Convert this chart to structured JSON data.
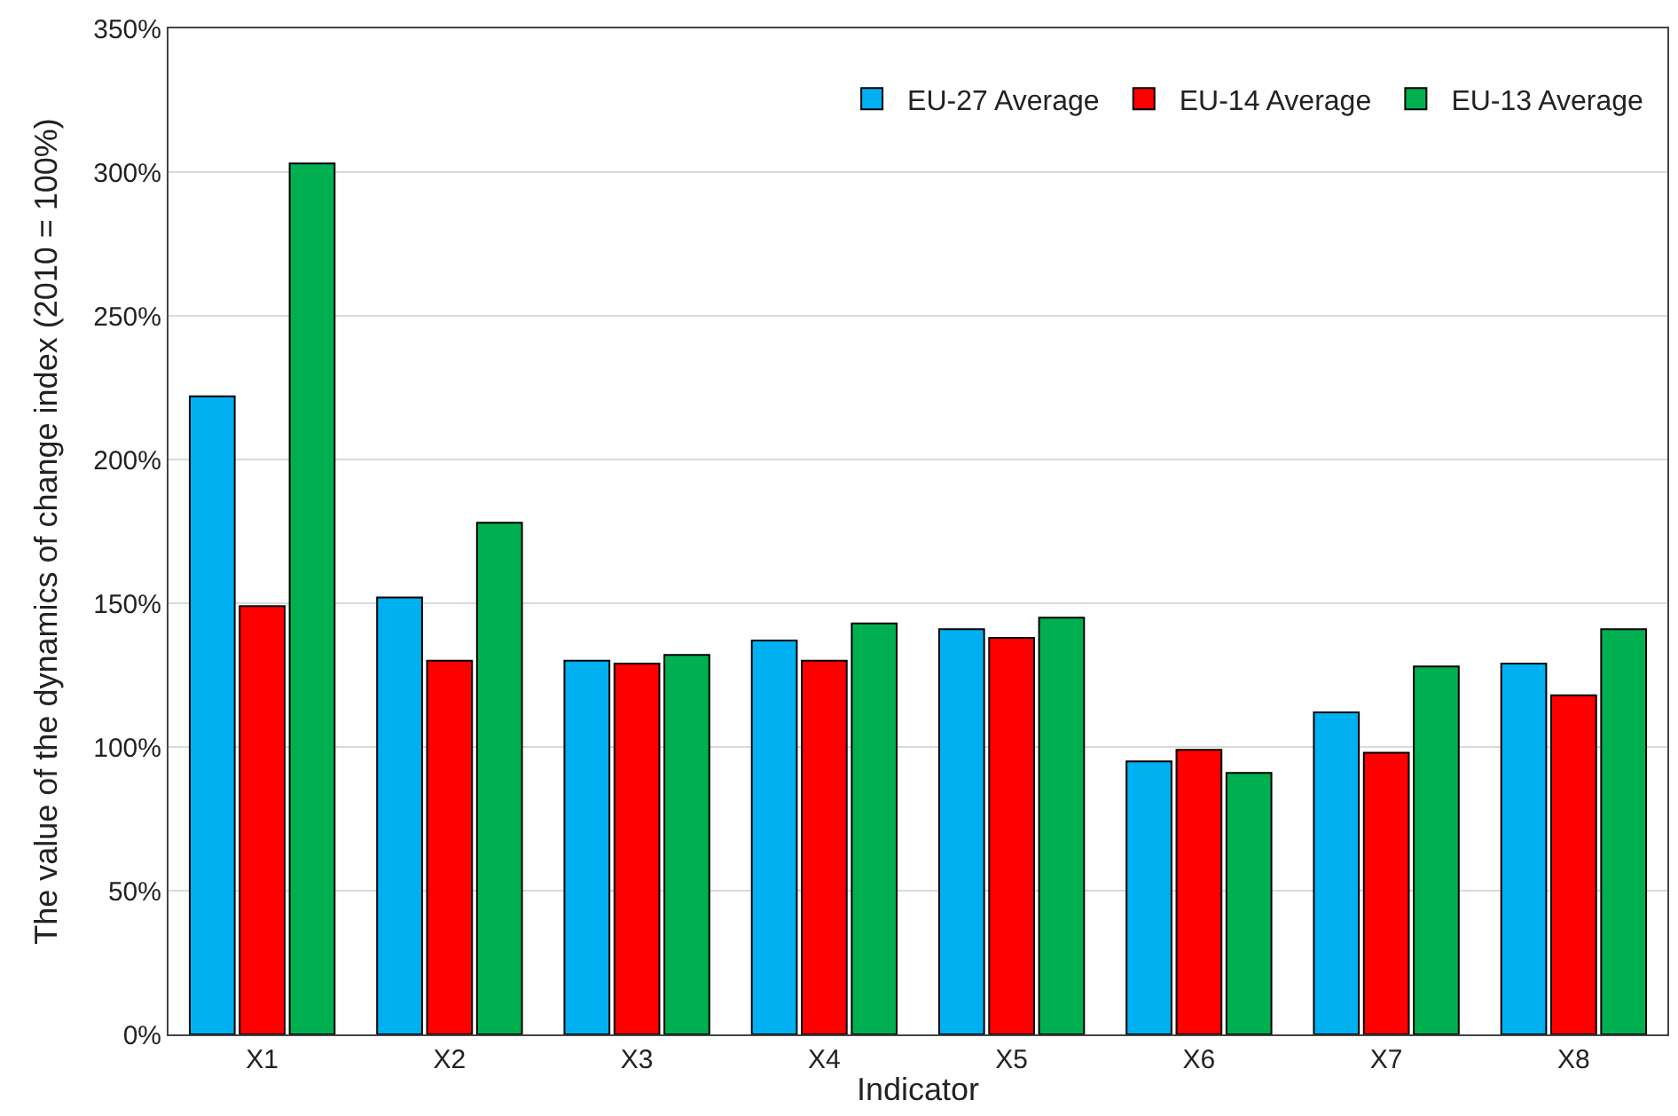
{
  "chart_data": {
    "type": "bar",
    "xlabel": "Indicator",
    "ylabel": "The value of the dynamics of change index (2010 = 100%)",
    "categories": [
      "X1",
      "X2",
      "X3",
      "X4",
      "X5",
      "X6",
      "X7",
      "X8"
    ],
    "series": [
      {
        "name": "EU-27 Average",
        "color": "#00b0f0",
        "values": [
          222,
          152,
          130,
          137,
          141,
          95,
          112,
          129
        ]
      },
      {
        "name": "EU-14 Average",
        "color": "#ff0000",
        "values": [
          149,
          130,
          129,
          130,
          138,
          99,
          98,
          118
        ]
      },
      {
        "name": "EU-13 Average",
        "color": "#00b050",
        "values": [
          303,
          178,
          132,
          143,
          145,
          91,
          128,
          141
        ]
      }
    ],
    "ylim": [
      0,
      350
    ],
    "yticks": [
      {
        "value": 0,
        "label": "0%"
      },
      {
        "value": 50,
        "label": "50%"
      },
      {
        "value": 100,
        "label": "100%"
      },
      {
        "value": 150,
        "label": "150%"
      },
      {
        "value": 200,
        "label": "200%"
      },
      {
        "value": 250,
        "label": "250%"
      },
      {
        "value": 300,
        "label": "300%"
      },
      {
        "value": 350,
        "label": "350%"
      }
    ],
    "grid": "y",
    "legend": "top right"
  }
}
